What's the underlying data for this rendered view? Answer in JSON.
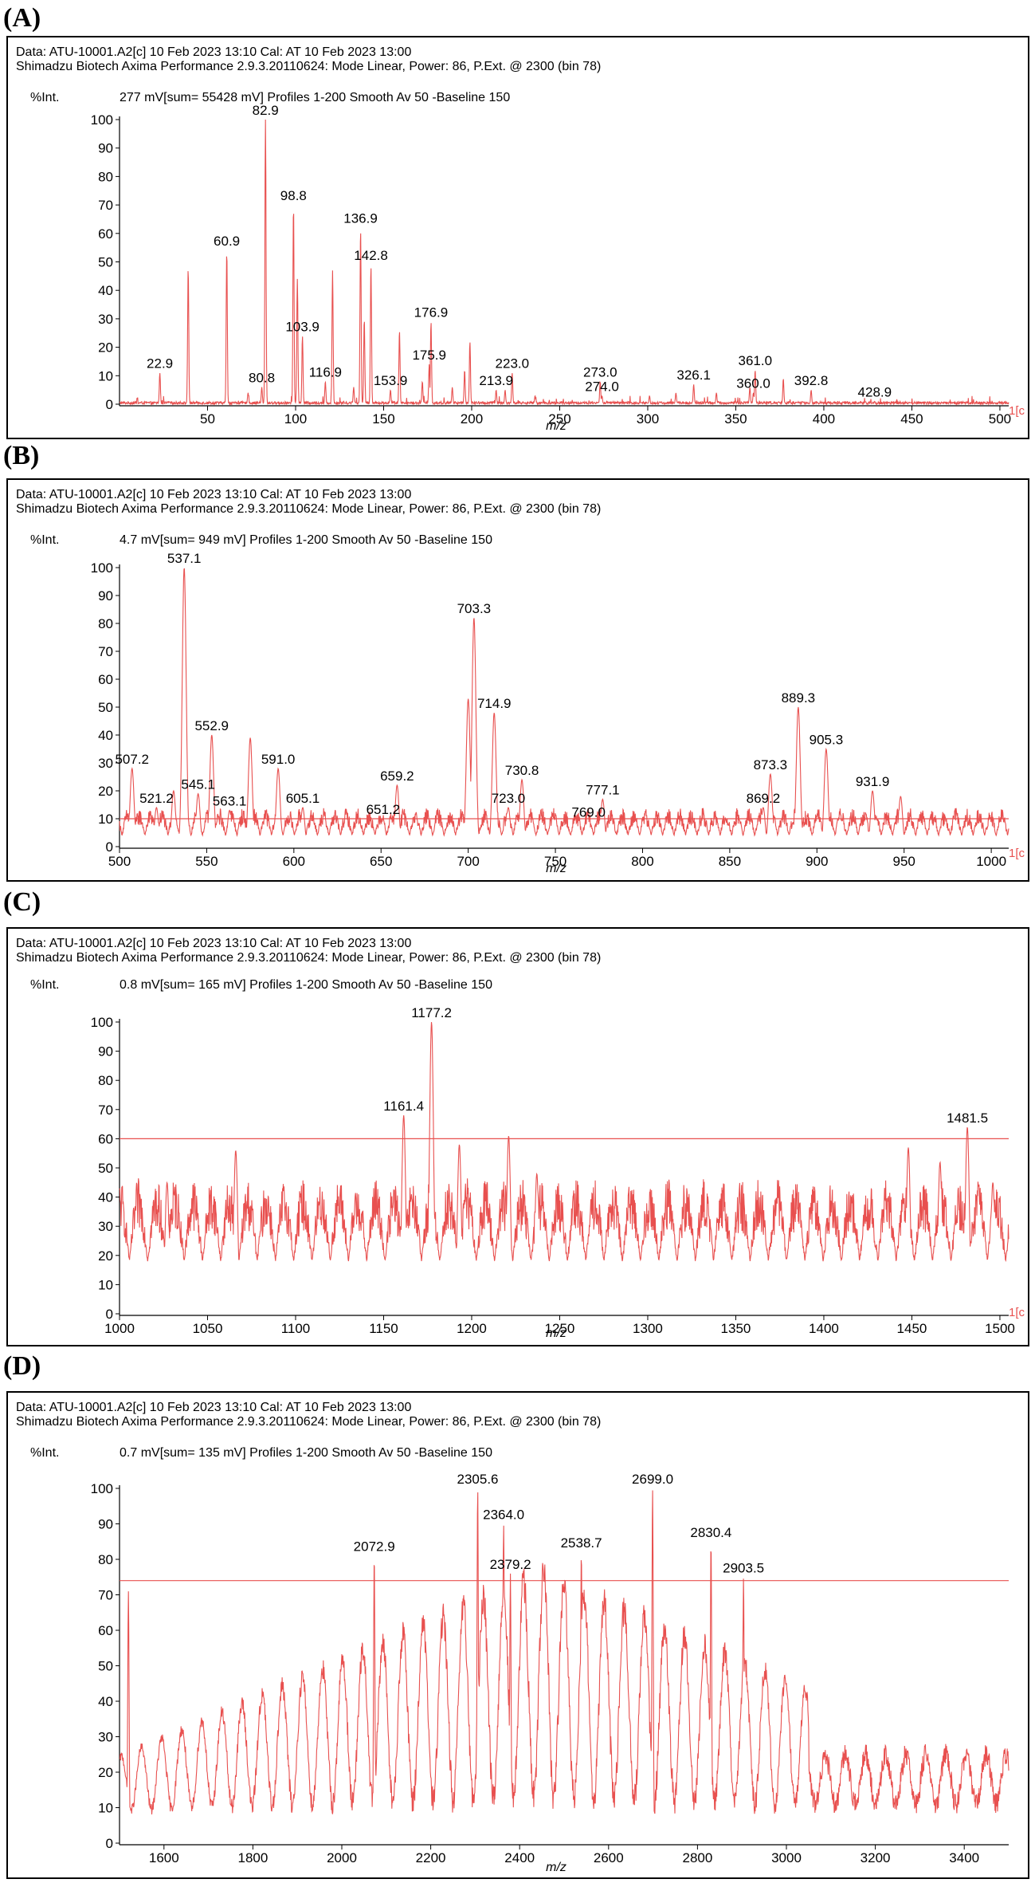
{
  "colors": {
    "trace": "#e8504f",
    "axis": "#000000",
    "background": "#ffffff"
  },
  "panels": [
    {
      "label": "(A)",
      "header_line1": "Data: ATU-10001.A2[c] 10 Feb 2023 13:10 Cal: AT 10 Feb 2023 13:00",
      "header_line2": "Shimadzu Biotech Axima Performance 2.9.3.20110624: Mode Linear, Power: 86, P.Ext. @ 2300 (bin 78)",
      "intensity_label": "%Int.",
      "summary": "277 mV[sum= 55428 mV]  Profiles 1-200 Smooth Av 50 -Baseline 150",
      "edge_label": "1[c"
    },
    {
      "label": "(B)",
      "header_line1": "Data: ATU-10001.A2[c] 10 Feb 2023 13:10 Cal: AT 10 Feb 2023 13:00",
      "header_line2": "Shimadzu Biotech Axima Performance 2.9.3.20110624: Mode Linear, Power: 86, P.Ext. @ 2300 (bin 78)",
      "intensity_label": "%Int.",
      "summary": "4.7 mV[sum= 949 mV]  Profiles 1-200 Smooth Av 50 -Baseline 150",
      "edge_label": "1[c"
    },
    {
      "label": "(C)",
      "header_line1": "Data: ATU-10001.A2[c] 10 Feb 2023 13:10 Cal: AT 10 Feb 2023 13:00",
      "header_line2": "Shimadzu Biotech Axima Performance 2.9.3.20110624: Mode Linear, Power: 86, P.Ext. @ 2300 (bin 78)",
      "intensity_label": "%Int.",
      "summary": "0.8 mV[sum= 165 mV]  Profiles 1-200 Smooth Av 50 -Baseline 150",
      "edge_label": "1[c"
    },
    {
      "label": "(D)",
      "header_line1": "Data: ATU-10001.A2[c] 10 Feb 2023 13:10 Cal: AT 10 Feb 2023 13:00",
      "header_line2": "Shimadzu Biotech Axima Performance 2.9.3.20110624: Mode Linear, Power: 86, P.Ext. @ 2300 (bin 78)",
      "intensity_label": "%Int.",
      "summary": "0.7 mV[sum= 135 mV]  Profiles 1-200 Smooth Av 50 -Baseline 150",
      "edge_label": ""
    }
  ],
  "chart_data": [
    {
      "type": "line",
      "title": "(A)",
      "xlabel": "m/z",
      "ylabel": "%Int.",
      "xlim": [
        0,
        505
      ],
      "ylim": [
        0,
        100
      ],
      "xticks": [
        50,
        100,
        150,
        200,
        250,
        300,
        350,
        400,
        450,
        500
      ],
      "yticks": [
        0,
        10,
        20,
        30,
        40,
        50,
        60,
        70,
        80,
        90,
        100
      ],
      "noise_amp": 1.5,
      "peaks": [
        {
          "x": 22.9,
          "y": 11,
          "label": "22.9"
        },
        {
          "x": 39,
          "y": 48
        },
        {
          "x": 60.9,
          "y": 54,
          "label": "60.9"
        },
        {
          "x": 73,
          "y": 4
        },
        {
          "x": 80.8,
          "y": 6,
          "label": "80.8"
        },
        {
          "x": 82.9,
          "y": 100,
          "label": "82.9"
        },
        {
          "x": 98.8,
          "y": 70,
          "label": "98.8"
        },
        {
          "x": 101,
          "y": 44
        },
        {
          "x": 103.9,
          "y": 24,
          "label": "103.9"
        },
        {
          "x": 116.9,
          "y": 8,
          "label": "116.9"
        },
        {
          "x": 121,
          "y": 47
        },
        {
          "x": 133,
          "y": 6
        },
        {
          "x": 136.9,
          "y": 62,
          "label": "136.9"
        },
        {
          "x": 139,
          "y": 30
        },
        {
          "x": 142.8,
          "y": 49,
          "label": "142.8"
        },
        {
          "x": 153.9,
          "y": 5,
          "label": "153.9"
        },
        {
          "x": 159,
          "y": 26
        },
        {
          "x": 172,
          "y": 8
        },
        {
          "x": 175.9,
          "y": 14,
          "label": "175.9"
        },
        {
          "x": 176.9,
          "y": 29,
          "label": "176.9"
        },
        {
          "x": 189,
          "y": 6
        },
        {
          "x": 196,
          "y": 12
        },
        {
          "x": 199,
          "y": 22
        },
        {
          "x": 213.9,
          "y": 5,
          "label": "213.9"
        },
        {
          "x": 219,
          "y": 5
        },
        {
          "x": 223.0,
          "y": 11,
          "label": "223.0"
        },
        {
          "x": 236,
          "y": 3
        },
        {
          "x": 273.0,
          "y": 8,
          "label": "273.0"
        },
        {
          "x": 274.0,
          "y": 3,
          "label": "274.0"
        },
        {
          "x": 301,
          "y": 3
        },
        {
          "x": 316,
          "y": 4
        },
        {
          "x": 326.1,
          "y": 7,
          "label": "326.1"
        },
        {
          "x": 339,
          "y": 4
        },
        {
          "x": 358,
          "y": 6
        },
        {
          "x": 360.0,
          "y": 4,
          "label": "360.0"
        },
        {
          "x": 361.0,
          "y": 12,
          "label": "361.0"
        },
        {
          "x": 377,
          "y": 9
        },
        {
          "x": 392.8,
          "y": 5,
          "label": "392.8"
        },
        {
          "x": 428.9,
          "y": 1,
          "label": "428.9"
        }
      ],
      "threshold": null
    },
    {
      "type": "line",
      "title": "(B)",
      "xlabel": "m/z",
      "ylabel": "%Int.",
      "xlim": [
        500,
        1010
      ],
      "ylim": [
        0,
        100
      ],
      "xticks": [
        500,
        550,
        600,
        650,
        700,
        750,
        800,
        850,
        900,
        950,
        1000
      ],
      "yticks": [
        0,
        10,
        20,
        30,
        40,
        50,
        60,
        70,
        80,
        90,
        100
      ],
      "noise_amp": 9,
      "threshold": 10,
      "peaks": [
        {
          "x": 507.2,
          "y": 28,
          "label": "507.2"
        },
        {
          "x": 521.2,
          "y": 14,
          "label": "521.2"
        },
        {
          "x": 531,
          "y": 20
        },
        {
          "x": 537.1,
          "y": 100,
          "label": "537.1"
        },
        {
          "x": 545.1,
          "y": 19,
          "label": "545.1"
        },
        {
          "x": 552.9,
          "y": 40,
          "label": "552.9"
        },
        {
          "x": 563.1,
          "y": 13,
          "label": "563.1"
        },
        {
          "x": 575,
          "y": 39
        },
        {
          "x": 591.0,
          "y": 28,
          "label": "591.0"
        },
        {
          "x": 605.1,
          "y": 14,
          "label": "605.1"
        },
        {
          "x": 651.2,
          "y": 10,
          "label": "651.2"
        },
        {
          "x": 659.2,
          "y": 22,
          "label": "659.2"
        },
        {
          "x": 700,
          "y": 53
        },
        {
          "x": 703.3,
          "y": 82,
          "label": "703.3"
        },
        {
          "x": 714.9,
          "y": 48,
          "label": "714.9"
        },
        {
          "x": 723.0,
          "y": 14,
          "label": "723.0"
        },
        {
          "x": 730.8,
          "y": 24,
          "label": "730.8"
        },
        {
          "x": 769.0,
          "y": 9,
          "label": "769.0"
        },
        {
          "x": 777.1,
          "y": 17,
          "label": "777.1"
        },
        {
          "x": 869.2,
          "y": 14,
          "label": "869.2"
        },
        {
          "x": 873.3,
          "y": 26,
          "label": "873.3"
        },
        {
          "x": 889.3,
          "y": 50,
          "label": "889.3"
        },
        {
          "x": 905.3,
          "y": 35,
          "label": "905.3"
        },
        {
          "x": 931.9,
          "y": 20,
          "label": "931.9"
        },
        {
          "x": 948,
          "y": 18
        }
      ]
    },
    {
      "type": "line",
      "title": "(C)",
      "xlabel": "m/z",
      "ylabel": "%Int.",
      "xlim": [
        1000,
        1505
      ],
      "ylim": [
        0,
        100
      ],
      "xticks": [
        1000,
        1050,
        1100,
        1150,
        1200,
        1250,
        1300,
        1350,
        1400,
        1450,
        1500
      ],
      "yticks": [
        0,
        10,
        20,
        30,
        40,
        50,
        60,
        70,
        80,
        90,
        100
      ],
      "noise_amp": 26,
      "threshold": 60,
      "peaks": [
        {
          "x": 1027,
          "y": 45
        },
        {
          "x": 1066,
          "y": 56
        },
        {
          "x": 1161.4,
          "y": 68,
          "label": "1161.4"
        },
        {
          "x": 1177.2,
          "y": 100,
          "label": "1177.2"
        },
        {
          "x": 1193,
          "y": 58
        },
        {
          "x": 1221,
          "y": 61
        },
        {
          "x": 1237,
          "y": 48
        },
        {
          "x": 1448,
          "y": 57
        },
        {
          "x": 1466,
          "y": 52
        },
        {
          "x": 1481.5,
          "y": 64,
          "label": "1481.5"
        },
        {
          "x": 1496,
          "y": 45
        }
      ]
    },
    {
      "type": "line",
      "title": "(D)",
      "xlabel": "m/z",
      "ylabel": "%Int.",
      "xlim": [
        1500,
        3500
      ],
      "ylim": [
        0,
        100
      ],
      "xticks": [
        1600,
        1800,
        2000,
        2200,
        2400,
        2600,
        2800,
        3000,
        3200,
        3400
      ],
      "yticks": [
        0,
        10,
        20,
        30,
        40,
        50,
        60,
        70,
        80,
        90,
        100
      ],
      "noise_amp": 30,
      "threshold": 74,
      "peaks": [
        {
          "x": 1520,
          "y": 71
        },
        {
          "x": 2072.9,
          "y": 81,
          "label": "2072.9"
        },
        {
          "x": 2305.6,
          "y": 100,
          "label": "2305.6"
        },
        {
          "x": 2364.0,
          "y": 90,
          "label": "2364.0"
        },
        {
          "x": 2379.2,
          "y": 76,
          "label": "2379.2"
        },
        {
          "x": 2538.7,
          "y": 82,
          "label": "2538.7"
        },
        {
          "x": 2699.0,
          "y": 100,
          "label": "2699.0"
        },
        {
          "x": 2830.4,
          "y": 85,
          "label": "2830.4"
        },
        {
          "x": 2903.5,
          "y": 75,
          "label": "2903.5"
        }
      ]
    }
  ]
}
